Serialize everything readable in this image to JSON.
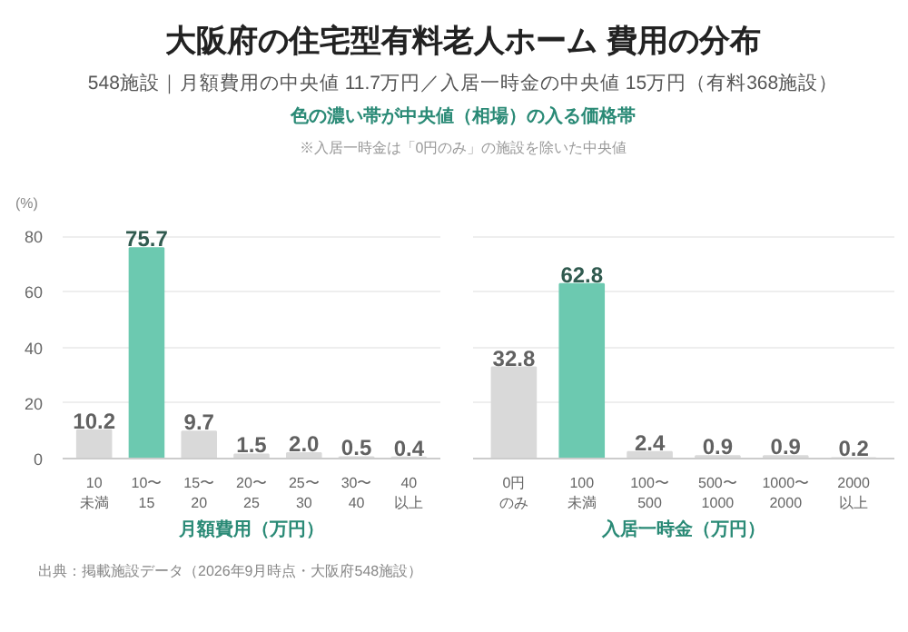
{
  "chart_data": [
    {
      "type": "bar",
      "title": "大阪府の住宅型有料老人ホーム 費用の分布",
      "subtitle": "548施設｜月額費用の中央値 11.7万円／入居一時金の中央値 15万円（有料368施設）",
      "annotations": [
        "色の濃い帯が中央値（相場）の入る価格帯",
        "※入居一時金は「0円のみ」の施設を除いた中央値",
        "出典：掲載施設データ（2026年9月時点・大阪府548施設）"
      ],
      "categories": [
        "10未満",
        "10〜15",
        "15〜20",
        "20〜25",
        "25〜30",
        "30〜40",
        "40以上"
      ],
      "values": [
        10.2,
        75.7,
        9.7,
        1.5,
        2.0,
        0.5,
        0.4
      ],
      "value_labels": [
        "10.2",
        "75.7",
        "9.7",
        "1.5",
        "2.0",
        "0.5",
        "0.4"
      ],
      "colors": [
        "#d9d9d9",
        "#6cc9b0",
        "#d9d9d9",
        "#d9d9d9",
        "#d9d9d9",
        "#d9d9d9",
        "#d9d9d9"
      ],
      "xlabel": "月額費用（万円）",
      "ylabel": "(%)",
      "ylim": [
        0,
        80
      ],
      "yticks": [
        0,
        20,
        40,
        60,
        80
      ],
      "grid": "y"
    },
    {
      "type": "bar",
      "categories": [
        "0円のみ",
        "100未満",
        "100〜500",
        "500〜1000",
        "1000〜2000",
        "2000以上"
      ],
      "values": [
        32.8,
        62.8,
        2.4,
        0.9,
        0.9,
        0.2
      ],
      "colors": [
        "#d9d9d9",
        "#6cc9b0",
        "#d9d9d9",
        "#d9d9d9",
        "#d9d9d9",
        "#d9d9d9"
      ],
      "xlabel": "入居一時金（万円）",
      "ylim": [
        0,
        80
      ],
      "yticks": [
        0,
        20,
        40,
        60,
        80
      ],
      "grid": "y",
      "data_labels": true,
      "tick_labels": "x"
    }
  ]
}
